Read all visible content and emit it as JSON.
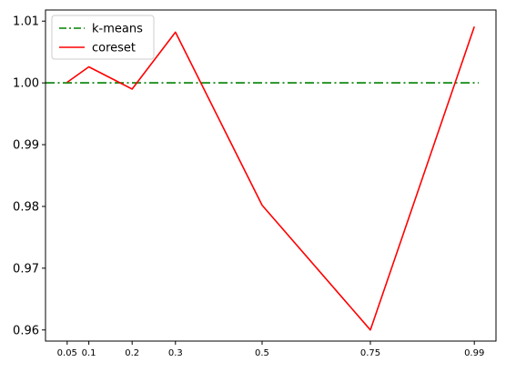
{
  "chart_data": {
    "type": "line",
    "title": "",
    "xlabel": "",
    "ylabel": "",
    "x": [
      0.05,
      0.1,
      0.2,
      0.3,
      0.5,
      0.75,
      0.99
    ],
    "x_tick_labels": [
      "0.05",
      "0.1",
      "0.2",
      "0.3",
      "0.5",
      "0.75",
      "0.99"
    ],
    "xlim": [
      0.0,
      1.04
    ],
    "ylim": [
      0.9582,
      1.0118
    ],
    "y_ticks": [
      0.96,
      0.97,
      0.98,
      0.99,
      1.0,
      1.01
    ],
    "y_tick_labels": [
      "0.96",
      "0.97",
      "0.98",
      "0.99",
      "1.00",
      "1.01"
    ],
    "grid": false,
    "legend_position": "top-left",
    "series": [
      {
        "name": "k-means",
        "color": "#008000",
        "style": "dashdot",
        "x": [
          0.0,
          1.0
        ],
        "values": [
          1.0,
          1.0
        ]
      },
      {
        "name": "coreset",
        "color": "#ff0000",
        "style": "solid",
        "x": [
          0.05,
          0.1,
          0.2,
          0.3,
          0.5,
          0.75,
          0.99
        ],
        "values": [
          1.0001,
          1.0026,
          0.999,
          1.0082,
          0.9802,
          0.96,
          1.0091
        ]
      }
    ]
  }
}
